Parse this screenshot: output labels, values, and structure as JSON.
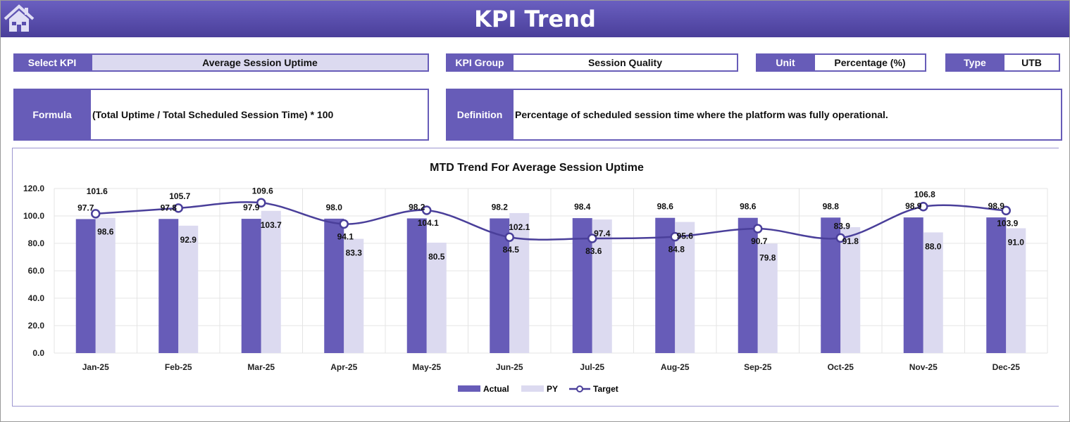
{
  "header": {
    "title": "KPI Trend",
    "home_icon": "home-icon"
  },
  "fields": {
    "select_kpi_label": "Select KPI",
    "select_kpi_value": "Average Session Uptime",
    "kpi_group_label": "KPI Group",
    "kpi_group_value": "Session Quality",
    "unit_label": "Unit",
    "unit_value": "Percentage (%)",
    "type_label": "Type",
    "type_value": "UTB",
    "formula_label": "Formula",
    "formula_value": "(Total Uptime / Total Scheduled Session Time) * 100",
    "definition_label": "Definition",
    "definition_value": "Percentage of scheduled session time where the platform was fully operational."
  },
  "colors": {
    "accent": "#675cb8",
    "py": "#dcdaf0",
    "target": "#4a3f9a"
  },
  "chart_data": {
    "type": "bar",
    "title": "MTD Trend For Average Session Uptime",
    "categories": [
      "Jan-25",
      "Feb-25",
      "Mar-25",
      "Apr-25",
      "May-25",
      "Jun-25",
      "Jul-25",
      "Aug-25",
      "Sep-25",
      "Oct-25",
      "Nov-25",
      "Dec-25"
    ],
    "series": [
      {
        "name": "Actual",
        "type": "bar",
        "values": [
          97.7,
          97.8,
          97.9,
          98.0,
          98.2,
          98.2,
          98.4,
          98.6,
          98.6,
          98.8,
          98.9,
          98.9
        ]
      },
      {
        "name": "PY",
        "type": "bar",
        "values": [
          98.6,
          92.9,
          103.7,
          83.3,
          80.5,
          102.1,
          97.4,
          95.6,
          79.8,
          91.8,
          88.0,
          91.0
        ]
      },
      {
        "name": "Target",
        "type": "line",
        "values": [
          101.6,
          105.7,
          109.6,
          94.1,
          104.1,
          84.5,
          83.6,
          84.8,
          90.7,
          83.9,
          106.8,
          103.9
        ]
      }
    ],
    "ylim": [
      0,
      120
    ],
    "yticks": [
      "0.0",
      "20.0",
      "40.0",
      "60.0",
      "80.0",
      "100.0",
      "120.0"
    ],
    "grid": true,
    "legend": "bottom"
  }
}
